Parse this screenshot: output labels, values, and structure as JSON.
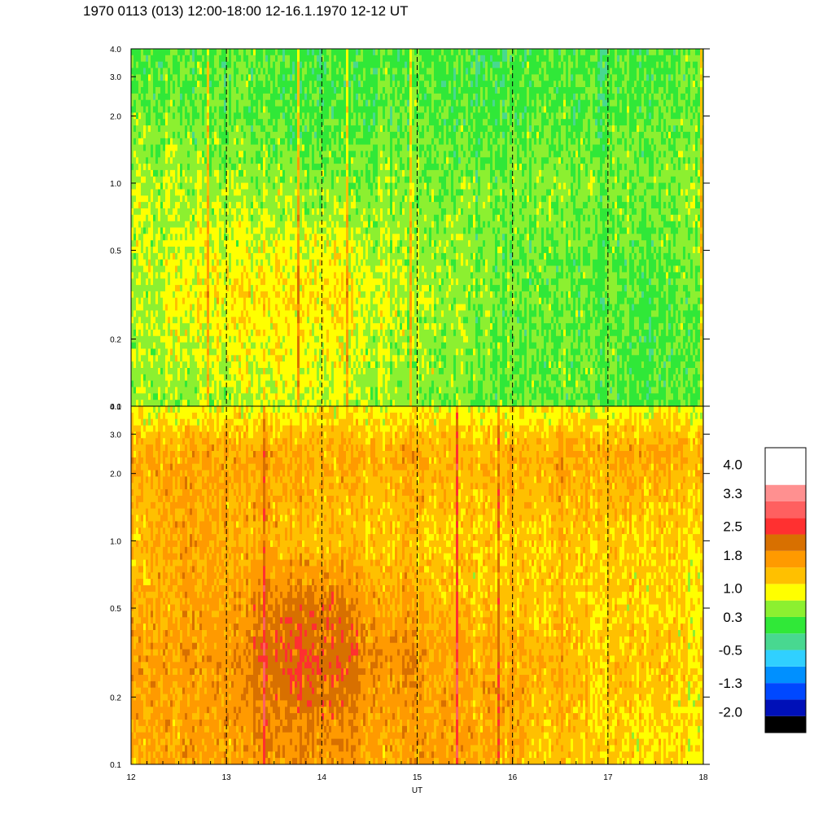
{
  "title": "1970 0113 (013) 12:00-18:00 12-16.1.1970  12-12 UT",
  "chart_data": {
    "type": "heatmap",
    "panels": [
      {
        "name": "",
        "y_scale": "log",
        "ylim": [
          0.1,
          4.0
        ],
        "y_ticks": [
          {
            "v": 0.1,
            "label": "0.1"
          },
          {
            "v": 0.2,
            "label": "0.2"
          },
          {
            "v": 0.5,
            "label": "0.5"
          },
          {
            "v": 1.0,
            "label": "1.0"
          },
          {
            "v": 2.0,
            "label": "2.0"
          },
          {
            "v": 3.0,
            "label": "3.0"
          },
          {
            "v": 4.0,
            "label": "4.0"
          }
        ],
        "levels": [
          {
            "y": 4.0,
            "v": [
              0.1,
              0.2,
              0.3,
              0.2,
              0.1,
              0.2,
              0.2,
              0.1,
              0.2,
              0.1,
              0.2,
              0.3
            ]
          },
          {
            "y": 2.0,
            "v": [
              0.4,
              0.3,
              0.3,
              0.2,
              0.2,
              0.3,
              0.2,
              0.2,
              0.3,
              0.2,
              0.3,
              0.3
            ]
          },
          {
            "y": 1.0,
            "v": [
              0.6,
              0.6,
              0.5,
              0.5,
              0.4,
              0.5,
              0.4,
              0.4,
              0.5,
              0.4,
              0.4,
              0.5
            ]
          },
          {
            "y": 0.5,
            "v": [
              0.6,
              0.8,
              0.8,
              0.9,
              0.8,
              0.6,
              0.5,
              0.4,
              0.3,
              0.3,
              0.3,
              0.4
            ]
          },
          {
            "y": 0.3,
            "v": [
              0.5,
              0.9,
              1.0,
              1.1,
              1.0,
              0.7,
              0.6,
              0.4,
              0.3,
              0.3,
              0.2,
              0.3
            ]
          },
          {
            "y": 0.1,
            "v": [
              0.5,
              0.5,
              0.6,
              0.8,
              0.7,
              0.5,
              0.4,
              0.3,
              0.3,
              0.3,
              0.2,
              0.2
            ]
          }
        ]
      },
      {
        "name": "",
        "y_scale": "log",
        "ylim": [
          0.1,
          4.0
        ],
        "y_ticks": [
          {
            "v": 0.1,
            "label": "0.1"
          },
          {
            "v": 0.2,
            "label": "0.2"
          },
          {
            "v": 0.5,
            "label": "0.5"
          },
          {
            "v": 1.0,
            "label": "1.0"
          },
          {
            "v": 2.0,
            "label": "2.0"
          },
          {
            "v": 3.0,
            "label": "3.0"
          },
          {
            "v": 4.0,
            "label": "4.0"
          }
        ],
        "levels": [
          {
            "y": 4.0,
            "v": [
              0.9,
              0.9,
              0.9,
              0.8,
              0.9,
              0.9,
              0.9,
              0.8,
              0.9,
              0.9,
              0.9,
              0.9
            ]
          },
          {
            "y": 2.5,
            "v": [
              1.6,
              1.6,
              1.5,
              1.6,
              1.5,
              1.5,
              1.5,
              1.4,
              1.5,
              1.6,
              1.6,
              1.5
            ]
          },
          {
            "y": 1.0,
            "v": [
              1.3,
              1.7,
              1.4,
              1.4,
              1.3,
              1.3,
              1.2,
              1.2,
              1.3,
              1.3,
              1.2,
              1.2
            ]
          },
          {
            "y": 0.5,
            "v": [
              1.5,
              1.6,
              1.6,
              2.1,
              2.0,
              1.6,
              1.4,
              1.3,
              1.3,
              1.2,
              1.2,
              1.1
            ]
          },
          {
            "y": 0.3,
            "v": [
              1.7,
              1.7,
              1.8,
              2.3,
              2.2,
              1.8,
              1.6,
              1.5,
              1.5,
              1.3,
              1.3,
              1.2
            ]
          },
          {
            "y": 0.1,
            "v": [
              1.5,
              1.6,
              1.6,
              1.8,
              1.7,
              1.5,
              1.7,
              1.5,
              1.3,
              1.2,
              1.1,
              1.0
            ]
          }
        ]
      }
    ],
    "x": {
      "label": "UT",
      "xlim": [
        12,
        18
      ],
      "ticks": [
        {
          "v": 12,
          "label": "12"
        },
        {
          "v": 13,
          "label": "13"
        },
        {
          "v": 14,
          "label": "14"
        },
        {
          "v": 15,
          "label": "15"
        },
        {
          "v": 16,
          "label": "16"
        },
        {
          "v": 17,
          "label": "17"
        },
        {
          "v": 18,
          "label": "18"
        }
      ],
      "dashed_lines_at": [
        13,
        14,
        15,
        16,
        17
      ]
    },
    "colorbar": {
      "min": -2.5,
      "max": 4.4,
      "bands": [
        {
          "color": "#000000",
          "from": -2.5,
          "to": -2.1
        },
        {
          "color": "#0010b8",
          "from": -2.1,
          "to": -1.7
        },
        {
          "color": "#0048ff",
          "from": -1.7,
          "to": -1.3
        },
        {
          "color": "#0090ff",
          "from": -1.3,
          "to": -0.9
        },
        {
          "color": "#30d0ff",
          "from": -0.9,
          "to": -0.5
        },
        {
          "color": "#48d890",
          "from": -0.5,
          "to": -0.1
        },
        {
          "color": "#30e838",
          "from": -0.1,
          "to": 0.3
        },
        {
          "color": "#8cf030",
          "from": 0.3,
          "to": 0.7
        },
        {
          "color": "#ffff00",
          "from": 0.7,
          "to": 1.1
        },
        {
          "color": "#ffc000",
          "from": 1.1,
          "to": 1.5
        },
        {
          "color": "#ff9a00",
          "from": 1.5,
          "to": 1.9
        },
        {
          "color": "#d87000",
          "from": 1.9,
          "to": 2.3
        },
        {
          "color": "#ff3030",
          "from": 2.3,
          "to": 2.7
        },
        {
          "color": "#ff6060",
          "from": 2.7,
          "to": 3.1
        },
        {
          "color": "#ff9090",
          "from": 3.1,
          "to": 3.5
        },
        {
          "color": "#ffffff",
          "from": 3.5,
          "to": 4.4
        }
      ],
      "labels": [
        {
          "v": 4.0,
          "label": "4.0"
        },
        {
          "v": 3.3,
          "label": "3.3"
        },
        {
          "v": 2.5,
          "label": "2.5"
        },
        {
          "v": 1.8,
          "label": "1.8"
        },
        {
          "v": 1.0,
          "label": "1.0"
        },
        {
          "v": 0.3,
          "label": "0.3"
        },
        {
          "v": -0.5,
          "label": "-0.5"
        },
        {
          "v": -1.3,
          "label": "-1.3"
        },
        {
          "v": -2.0,
          "label": "-2.0"
        }
      ]
    }
  }
}
